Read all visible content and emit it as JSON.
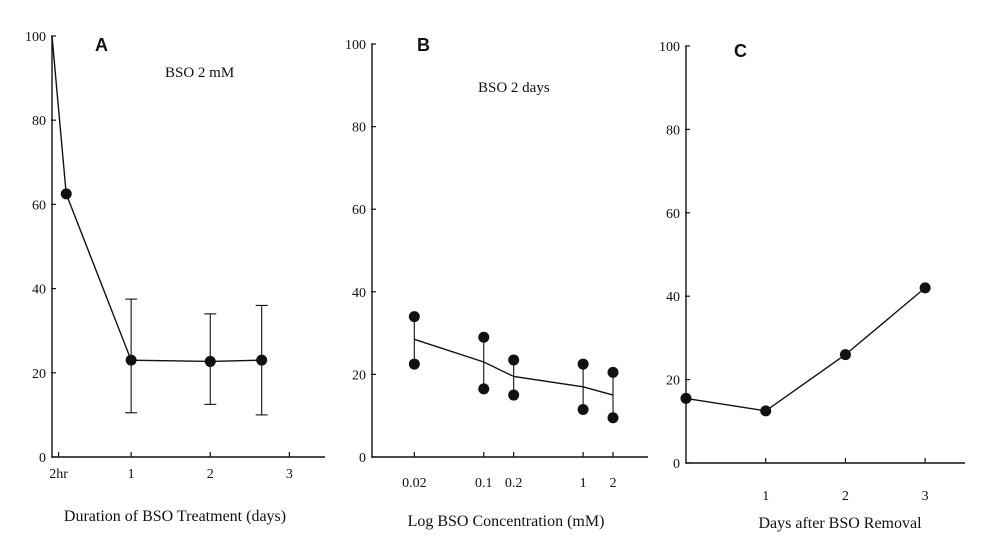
{
  "chart_data": [
    {
      "type": "line",
      "panel": "A",
      "title": "",
      "annotation": "BSO 2 mM",
      "xlabel": "Duration of BSO Treatment (days)",
      "ylabel": "",
      "ylim": [
        0,
        100
      ],
      "yticks": [
        0,
        20,
        40,
        60,
        80,
        100
      ],
      "xlim": [
        0,
        3.45
      ],
      "xticks": [
        {
          "value": 0.083,
          "label": "2hr"
        },
        {
          "value": 1,
          "label": "1"
        },
        {
          "value": 2,
          "label": "2"
        },
        {
          "value": 3,
          "label": "3"
        }
      ],
      "series": [
        {
          "name": "A",
          "line": [
            {
              "x": 0,
              "y": 100
            },
            {
              "x": 0.18,
              "y": 62.5
            },
            {
              "x": 1,
              "y": 23
            },
            {
              "x": 2,
              "y": 22.7
            },
            {
              "x": 2.65,
              "y": 23
            }
          ],
          "points": [
            {
              "x": 0.18,
              "y": 62.5
            },
            {
              "x": 1,
              "y": 23,
              "err_low": 10.5,
              "err_high": 37.5
            },
            {
              "x": 2,
              "y": 22.7,
              "err_low": 12.5,
              "err_high": 34
            },
            {
              "x": 2.65,
              "y": 23,
              "err_low": 10,
              "err_high": 36
            }
          ]
        }
      ]
    },
    {
      "type": "line",
      "panel": "B",
      "title": "",
      "annotation": "BSO 2 days",
      "xlabel": "Log BSO Concentration (mM)",
      "ylabel": "",
      "ylim": [
        0,
        100
      ],
      "yticks": [
        0,
        20,
        40,
        60,
        80,
        100
      ],
      "xscale": "log",
      "xlim": [
        0.0075,
        4.5
      ],
      "xticks": [
        {
          "value": 0.02,
          "label": "0.02"
        },
        {
          "value": 0.1,
          "label": "0.1"
        },
        {
          "value": 0.2,
          "label": "0.2"
        },
        {
          "value": 1,
          "label": "1"
        },
        {
          "value": 2,
          "label": "2"
        }
      ],
      "series": [
        {
          "name": "B",
          "line": [
            {
              "x": 0.02,
              "y": 28.5
            },
            {
              "x": 0.1,
              "y": 23
            },
            {
              "x": 0.2,
              "y": 19.5
            },
            {
              "x": 1,
              "y": 17
            },
            {
              "x": 2,
              "y": 15
            }
          ],
          "pairs": [
            {
              "x": 0.02,
              "high": 34,
              "low": 22.5
            },
            {
              "x": 0.1,
              "high": 29,
              "low": 16.5
            },
            {
              "x": 0.2,
              "high": 23.5,
              "low": 15
            },
            {
              "x": 1,
              "high": 22.5,
              "low": 11.5
            },
            {
              "x": 2,
              "high": 20.5,
              "low": 9.5
            }
          ]
        }
      ]
    },
    {
      "type": "line",
      "panel": "C",
      "title": "",
      "annotation": "",
      "xlabel": "Days after BSO Removal",
      "ylabel": "",
      "ylim": [
        0,
        100
      ],
      "yticks": [
        0,
        20,
        40,
        60,
        80,
        100
      ],
      "xlim": [
        0,
        3.5
      ],
      "xticks": [
        {
          "value": 1,
          "label": "1"
        },
        {
          "value": 2,
          "label": "2"
        },
        {
          "value": 3,
          "label": "3"
        }
      ],
      "series": [
        {
          "name": "C",
          "line": [
            {
              "x": 0,
              "y": 15.5
            },
            {
              "x": 1,
              "y": 12.5
            },
            {
              "x": 2,
              "y": 26
            },
            {
              "x": 3,
              "y": 42
            }
          ],
          "points": [
            {
              "x": 0,
              "y": 15.5
            },
            {
              "x": 1,
              "y": 12.5
            },
            {
              "x": 2,
              "y": 26
            },
            {
              "x": 3,
              "y": 42
            }
          ]
        }
      ]
    }
  ]
}
